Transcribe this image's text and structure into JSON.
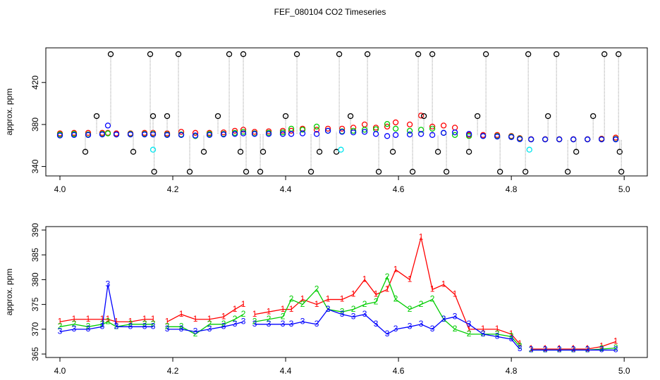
{
  "chart_data": [
    {
      "type": "scatter",
      "title": "FEF_080104  CO2 Timeseries",
      "y_label": "approx. ppm",
      "xlim": [
        3.975,
        5.041
      ],
      "ylim": [
        331,
        453
      ],
      "xticks": [
        {
          "value": 4,
          "label": "4.0"
        },
        {
          "value": 4.2,
          "label": "4.2"
        },
        {
          "value": 4.4,
          "label": "4.4"
        },
        {
          "value": 4.6,
          "label": "4.6"
        },
        {
          "value": 4.8,
          "label": "4.8"
        },
        {
          "value": 5,
          "label": "5.0"
        }
      ],
      "yticks": [
        340,
        380,
        420
      ],
      "x": [
        4.0,
        4.025,
        4.05,
        4.075,
        4.085,
        4.1,
        4.125,
        4.15,
        4.165,
        4.175,
        4.19,
        4.215,
        4.24,
        4.265,
        4.29,
        4.31,
        4.325,
        4.335,
        4.345,
        4.37,
        4.395,
        4.41,
        4.43,
        4.455,
        4.475,
        4.5,
        4.52,
        4.54,
        4.56,
        4.58,
        4.595,
        4.62,
        4.64,
        4.66,
        4.68,
        4.7,
        4.725,
        4.75,
        4.775,
        4.8,
        4.815,
        4.825,
        4.835,
        4.86,
        4.885,
        4.91,
        4.935,
        4.96,
        4.985
      ],
      "series": [
        {
          "color": "#ff0000",
          "values": [
            371.5,
            372,
            372,
            372,
            372,
            371.5,
            371.5,
            372,
            372,
            null,
            371.5,
            373,
            372,
            372,
            372.5,
            374,
            375,
            null,
            373,
            373.5,
            374,
            374,
            376,
            375,
            376,
            376,
            377,
            380,
            377,
            378,
            382,
            380,
            388.5,
            378,
            379,
            377,
            370,
            370,
            370,
            369,
            367,
            null,
            366,
            366,
            366,
            366,
            366,
            366.5,
            367.5
          ]
        },
        {
          "color": "#00cd00",
          "values": [
            370.5,
            371,
            370.5,
            371,
            371.5,
            370.5,
            371,
            371,
            371,
            null,
            370.5,
            370.5,
            369,
            371,
            371,
            372,
            373,
            null,
            371.5,
            372,
            372.5,
            376,
            375,
            378,
            374,
            373.5,
            374,
            375,
            375.5,
            380.5,
            376,
            374,
            375,
            376,
            372,
            370,
            369,
            369,
            369,
            368.5,
            366.5,
            null,
            365.8,
            365.8,
            365.8,
            365.8,
            365.8,
            366,
            366.2
          ]
        },
        {
          "color": "#0000ff",
          "values": [
            369.5,
            370,
            370,
            370.5,
            379,
            370.5,
            370.5,
            370.5,
            370.5,
            null,
            370,
            370,
            369.5,
            370,
            370.5,
            371,
            371.5,
            null,
            371,
            371,
            371,
            371,
            371.5,
            371,
            374,
            373,
            372.5,
            373,
            371,
            369,
            370,
            370.5,
            371,
            370,
            372,
            372.5,
            371,
            369,
            368.5,
            368,
            366,
            null,
            365.8,
            365.8,
            365.8,
            365.8,
            365.8,
            365.8,
            365.8
          ]
        },
        {
          "color": "#000000",
          "drop_lines": true,
          "x": [
            4.045,
            4.065,
            4.09,
            4.13,
            4.16,
            4.165,
            4.167,
            4.19,
            4.21,
            4.23,
            4.255,
            4.28,
            4.3,
            4.32,
            4.325,
            4.33,
            4.355,
            4.36,
            4.4,
            4.42,
            4.445,
            4.46,
            4.49,
            4.495,
            4.515,
            4.545,
            4.565,
            4.59,
            4.625,
            4.635,
            4.645,
            4.66,
            4.67,
            4.685,
            4.725,
            4.74,
            4.755,
            4.78,
            4.825,
            4.83,
            4.865,
            4.88,
            4.9,
            4.915,
            4.945,
            4.965,
            4.99,
            4.992,
            4.995
          ],
          "values": [
            354,
            388,
            447,
            354,
            447,
            388,
            335,
            388,
            447,
            335,
            354,
            388,
            447,
            354,
            447,
            335,
            335,
            354,
            388,
            447,
            335,
            354,
            354,
            447,
            388,
            447,
            335,
            354,
            335,
            447,
            388,
            447,
            354,
            335,
            354,
            388,
            447,
            335,
            335,
            447,
            388,
            447,
            335,
            354,
            388,
            447,
            447,
            354,
            335
          ]
        },
        {
          "color": "#00e5ee",
          "x": [
            4.165,
            4.498,
            4.832
          ],
          "values": [
            356,
            356,
            356
          ]
        }
      ]
    },
    {
      "type": "line",
      "y_label": "approx. ppm",
      "xlim": [
        3.975,
        5.041
      ],
      "ylim": [
        364.3,
        390.7
      ],
      "xticks": [
        {
          "value": 4,
          "label": "4.0"
        },
        {
          "value": 4.2,
          "label": "4.2"
        },
        {
          "value": 4.4,
          "label": "4.4"
        },
        {
          "value": 4.6,
          "label": "4.6"
        },
        {
          "value": 4.8,
          "label": "4.8"
        },
        {
          "value": 5,
          "label": "5.0"
        }
      ],
      "yticks": [
        365,
        370,
        375,
        380,
        385,
        390
      ],
      "x": [
        4.0,
        4.025,
        4.05,
        4.075,
        4.085,
        4.1,
        4.125,
        4.15,
        4.165,
        4.175,
        4.19,
        4.215,
        4.24,
        4.265,
        4.29,
        4.31,
        4.325,
        4.335,
        4.345,
        4.37,
        4.395,
        4.41,
        4.43,
        4.455,
        4.475,
        4.5,
        4.52,
        4.54,
        4.56,
        4.58,
        4.595,
        4.62,
        4.64,
        4.66,
        4.68,
        4.7,
        4.725,
        4.75,
        4.775,
        4.8,
        4.815,
        4.825,
        4.835,
        4.86,
        4.885,
        4.91,
        4.935,
        4.96,
        4.985
      ],
      "series": [
        {
          "name": "1",
          "color": "#ff0000",
          "values": [
            371.5,
            372,
            372,
            372,
            372,
            371.5,
            371.5,
            372,
            372,
            null,
            371.5,
            373,
            372,
            372,
            372.5,
            374,
            375,
            null,
            373,
            373.5,
            374,
            374,
            376,
            375,
            376,
            376,
            377,
            380,
            377,
            378,
            382,
            380,
            388.5,
            378,
            379,
            377,
            370,
            370,
            370,
            369,
            367,
            null,
            366,
            366,
            366,
            366,
            366,
            366.5,
            367.5
          ]
        },
        {
          "name": "2",
          "color": "#00cd00",
          "values": [
            370.5,
            371,
            370.5,
            371,
            371.5,
            370.5,
            371,
            371,
            371,
            null,
            370.5,
            370.5,
            369,
            371,
            371,
            372,
            373,
            null,
            371.5,
            372,
            372.5,
            376,
            375,
            378,
            374,
            373.5,
            374,
            375,
            375.5,
            380.5,
            376,
            374,
            375,
            376,
            372,
            370,
            369,
            369,
            369,
            368.5,
            366.5,
            null,
            365.8,
            365.8,
            365.8,
            365.8,
            365.8,
            366,
            366.2
          ]
        },
        {
          "name": "3",
          "color": "#0000ff",
          "values": [
            369.5,
            370,
            370,
            370.5,
            379,
            370.5,
            370.5,
            370.5,
            370.5,
            null,
            370,
            370,
            369.5,
            370,
            370.5,
            371,
            371.5,
            null,
            371,
            371,
            371,
            371,
            371.5,
            371,
            374,
            373,
            372.5,
            373,
            371,
            369,
            370,
            370.5,
            371,
            370,
            372,
            372.5,
            371,
            369,
            368.5,
            368,
            366,
            null,
            365.8,
            365.8,
            365.8,
            365.8,
            365.8,
            365.8,
            365.8
          ]
        }
      ]
    }
  ]
}
